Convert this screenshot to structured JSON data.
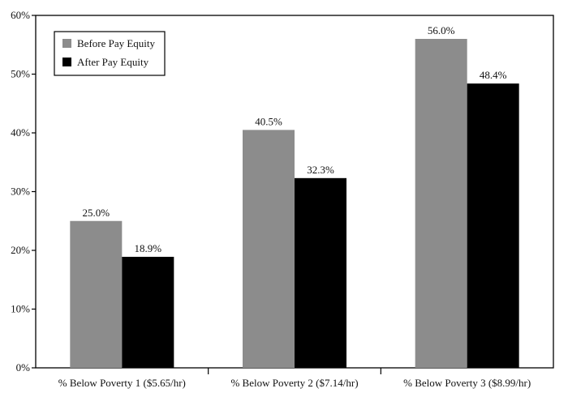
{
  "chart_data": {
    "type": "bar",
    "categories": [
      "% Below Poverty 1 ($5.65/hr)",
      "% Below Poverty 2 ($7.14/hr)",
      "% Below Poverty 3 ($8.99/hr)"
    ],
    "series": [
      {
        "name": "Before Pay Equity",
        "values": [
          25.0,
          40.5,
          56.0
        ],
        "labels": [
          "25.0%",
          "40.5%",
          "56.0%"
        ],
        "color": "#8c8c8c"
      },
      {
        "name": "After Pay Equity",
        "values": [
          18.9,
          32.3,
          48.4
        ],
        "labels": [
          "18.9%",
          "32.3%",
          "48.4%"
        ],
        "color": "#000000"
      }
    ],
    "ylim": [
      0,
      60
    ],
    "yticks": [
      0,
      10,
      20,
      30,
      40,
      50,
      60
    ],
    "ytick_labels": [
      "0%",
      "10%",
      "20%",
      "30%",
      "40%",
      "50%",
      "60%"
    ],
    "legend_position": "top-left",
    "grid": false
  }
}
